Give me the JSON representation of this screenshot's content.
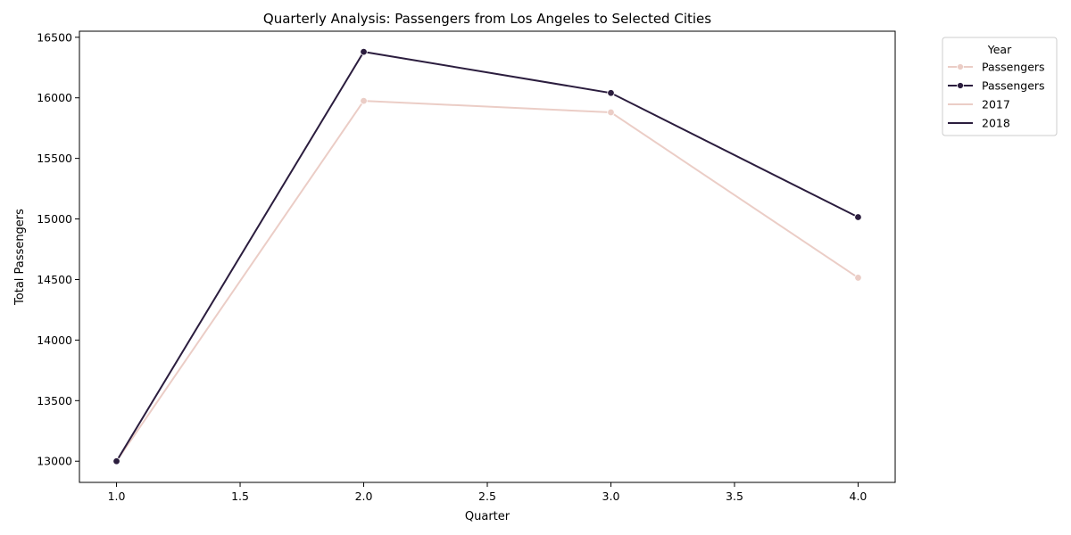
{
  "chart_data": {
    "type": "line",
    "title": "Quarterly Analysis: Passengers from Los Angeles to Selected Cities",
    "xlabel": "Quarter",
    "ylabel": "Total Passengers",
    "xlim": [
      0.85,
      4.15
    ],
    "ylim": [
      12825,
      16550
    ],
    "xticks": [
      "1.0",
      "1.5",
      "2.0",
      "2.5",
      "3.0",
      "3.5",
      "4.0"
    ],
    "yticks": [
      "13000",
      "13500",
      "14000",
      "14500",
      "15000",
      "15500",
      "16000",
      "16500"
    ],
    "x": [
      1,
      2,
      3,
      4
    ],
    "series": [
      {
        "name": "2017",
        "color": "#ebcdc6",
        "values": [
          13000,
          15975,
          15880,
          14515
        ],
        "markers": true
      },
      {
        "name": "2018",
        "color": "#2b1d3e",
        "values": [
          13000,
          16380,
          16040,
          15015
        ],
        "markers": true
      }
    ],
    "grid": false,
    "legend": {
      "title": "Year",
      "placement": "outside-top-right",
      "entries": [
        {
          "label": "Passengers",
          "color": "#ebcdc6",
          "marker": true
        },
        {
          "label": "Passengers",
          "color": "#2b1d3e",
          "marker": true
        },
        {
          "label": "2017",
          "color": "#ebcdc6",
          "marker": false
        },
        {
          "label": "2018",
          "color": "#2b1d3e",
          "marker": false
        }
      ]
    }
  }
}
